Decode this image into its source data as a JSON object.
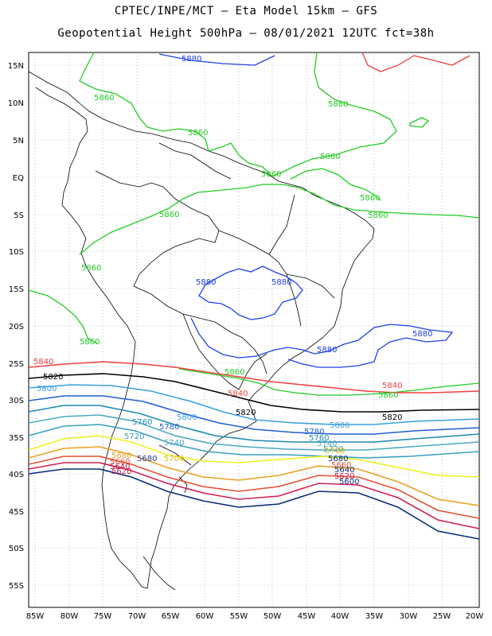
{
  "title_line1": "CPTEC/INPE/MCT –  Eta Model 15km – GFS",
  "title_line2": "Geopotential Height 500hPa – 08/01/2021 12UTC fct=38h",
  "lat_labels": [
    "15N",
    "10N",
    "5N",
    "EQ",
    "5S",
    "10S",
    "15S",
    "20S",
    "25S",
    "30S",
    "35S",
    "40S",
    "45S",
    "50S",
    "55S"
  ],
  "lon_labels": [
    "85W",
    "80W",
    "75W",
    "70W",
    "65W",
    "60W",
    "55W",
    "50W",
    "45W",
    "40W",
    "35W",
    "30W",
    "25W",
    "20W"
  ],
  "contour_colors": {
    "5880": "#2040e8",
    "5860": "#22cc22",
    "5840": "#f04040",
    "5820": "#000000",
    "5800": "#3aa0e0",
    "5780": "#2060d0",
    "5760": "#1a8ab0",
    "5740": "#4aa8c0",
    "5720": "#3aa0c0",
    "5700": "#f0f020",
    "5680": "#e8a020",
    "5660": "#e05030",
    "5640": "#b01040",
    "5620": "#d02050",
    "5600": "#0a2a7a"
  },
  "contour_labels": [
    {
      "text": "5880",
      "level": "5880"
    },
    {
      "text": "5860",
      "level": "5860"
    },
    {
      "text": "5860",
      "level": "5860"
    },
    {
      "text": "5860",
      "level": "5860"
    },
    {
      "text": "5860",
      "level": "5860"
    },
    {
      "text": "5860",
      "level": "5860"
    },
    {
      "text": "5860",
      "level": "5860"
    },
    {
      "text": "5860",
      "level": "5860"
    },
    {
      "text": "5860",
      "level": "5860"
    },
    {
      "text": "5860",
      "level": "5860"
    },
    {
      "text": "5860",
      "level": "5860"
    },
    {
      "text": "5860",
      "level": "5860"
    },
    {
      "text": "5860",
      "level": "5860"
    },
    {
      "text": "5880",
      "level": "5880"
    },
    {
      "text": "5880",
      "level": "5880"
    },
    {
      "text": "5880",
      "level": "5880"
    },
    {
      "text": "5880",
      "level": "5880"
    },
    {
      "text": "5840",
      "level": "5840"
    },
    {
      "text": "5820",
      "level": "5820"
    },
    {
      "text": "5800",
      "level": "5800"
    },
    {
      "text": "5840",
      "level": "5840"
    },
    {
      "text": "5840",
      "level": "5840"
    },
    {
      "text": "5820",
      "level": "5820"
    },
    {
      "text": "5820",
      "level": "5820"
    },
    {
      "text": "5800",
      "level": "5800"
    },
    {
      "text": "5800",
      "level": "5800"
    },
    {
      "text": "5780",
      "level": "5780"
    },
    {
      "text": "5760",
      "level": "5760"
    },
    {
      "text": "5780",
      "level": "5780"
    },
    {
      "text": "5760",
      "level": "5760"
    },
    {
      "text": "5720",
      "level": "5720"
    },
    {
      "text": "5740",
      "level": "5740"
    },
    {
      "text": "5740",
      "level": "5740"
    },
    {
      "text": "5720",
      "level": "5720"
    },
    {
      "text": "5700",
      "level": "5700"
    },
    {
      "text": "5680",
      "level": "5680"
    },
    {
      "text": "5680",
      "level": "5680"
    },
    {
      "text": "5660",
      "level": "5660"
    },
    {
      "text": "5640",
      "level": "5640"
    },
    {
      "text": "5620",
      "level": "5620"
    },
    {
      "text": "5700",
      "level": "5700"
    },
    {
      "text": "5680",
      "level": "5680"
    },
    {
      "text": "5660",
      "level": "5660"
    },
    {
      "text": "5640",
      "level": "5640"
    },
    {
      "text": "5620",
      "level": "5620"
    },
    {
      "text": "5600",
      "level": "5600"
    }
  ]
}
